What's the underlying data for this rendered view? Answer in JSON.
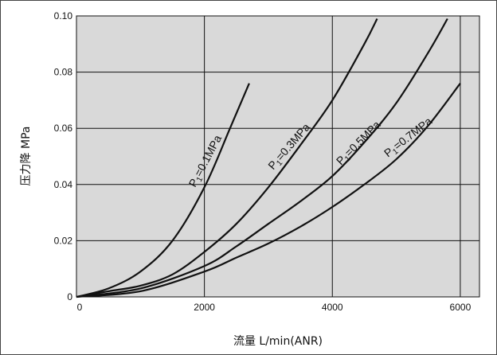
{
  "chart_data": {
    "type": "line",
    "xlabel": "流量  L/min(ANR)",
    "ylabel": "压力降  MPa",
    "xlim": [
      0,
      6300
    ],
    "ylim": [
      0,
      0.1
    ],
    "x_ticks": [
      0,
      2000,
      4000,
      6000
    ],
    "x_tick_labels": [
      "0",
      "2000",
      "4000",
      "6000"
    ],
    "y_ticks": [
      0,
      0.02,
      0.04,
      0.06,
      0.08,
      0.1
    ],
    "y_tick_labels": [
      "0",
      "0.02",
      "0.04",
      "0.06",
      "0.08",
      "0.10"
    ],
    "grid": true,
    "series": [
      {
        "name": "P1=0.1MPa",
        "label_main": "P",
        "label_sub": "1",
        "label_rest": "=0.1MPa",
        "x": [
          0,
          500,
          1000,
          1500,
          2000,
          2400,
          2700
        ],
        "y": [
          0,
          0.003,
          0.009,
          0.02,
          0.039,
          0.06,
          0.076
        ]
      },
      {
        "name": "P1=0.3MPa",
        "label_main": "P",
        "label_sub": "1",
        "label_rest": "=0.3MPa",
        "x": [
          0,
          500,
          1000,
          1500,
          2000,
          2500,
          3000,
          3500,
          4000,
          4500,
          4700
        ],
        "y": [
          0,
          0.002,
          0.004,
          0.008,
          0.016,
          0.026,
          0.039,
          0.054,
          0.07,
          0.09,
          0.099
        ]
      },
      {
        "name": "P1=0.5MPa",
        "label_main": "P",
        "label_sub": "1",
        "label_rest": "=0.5MPa",
        "x": [
          0,
          1000,
          2000,
          2500,
          3000,
          3500,
          4000,
          4500,
          5000,
          5500,
          5800
        ],
        "y": [
          0,
          0.003,
          0.011,
          0.018,
          0.026,
          0.034,
          0.043,
          0.055,
          0.069,
          0.087,
          0.099
        ]
      },
      {
        "name": "P1=0.7MPa",
        "label_main": "P",
        "label_sub": "1",
        "label_rest": "=0.7MPa",
        "x": [
          0,
          1000,
          2000,
          2500,
          3000,
          3500,
          4000,
          4500,
          5000,
          5500,
          6000
        ],
        "y": [
          0,
          0.002,
          0.009,
          0.014,
          0.019,
          0.025,
          0.032,
          0.04,
          0.049,
          0.061,
          0.076
        ]
      }
    ]
  }
}
